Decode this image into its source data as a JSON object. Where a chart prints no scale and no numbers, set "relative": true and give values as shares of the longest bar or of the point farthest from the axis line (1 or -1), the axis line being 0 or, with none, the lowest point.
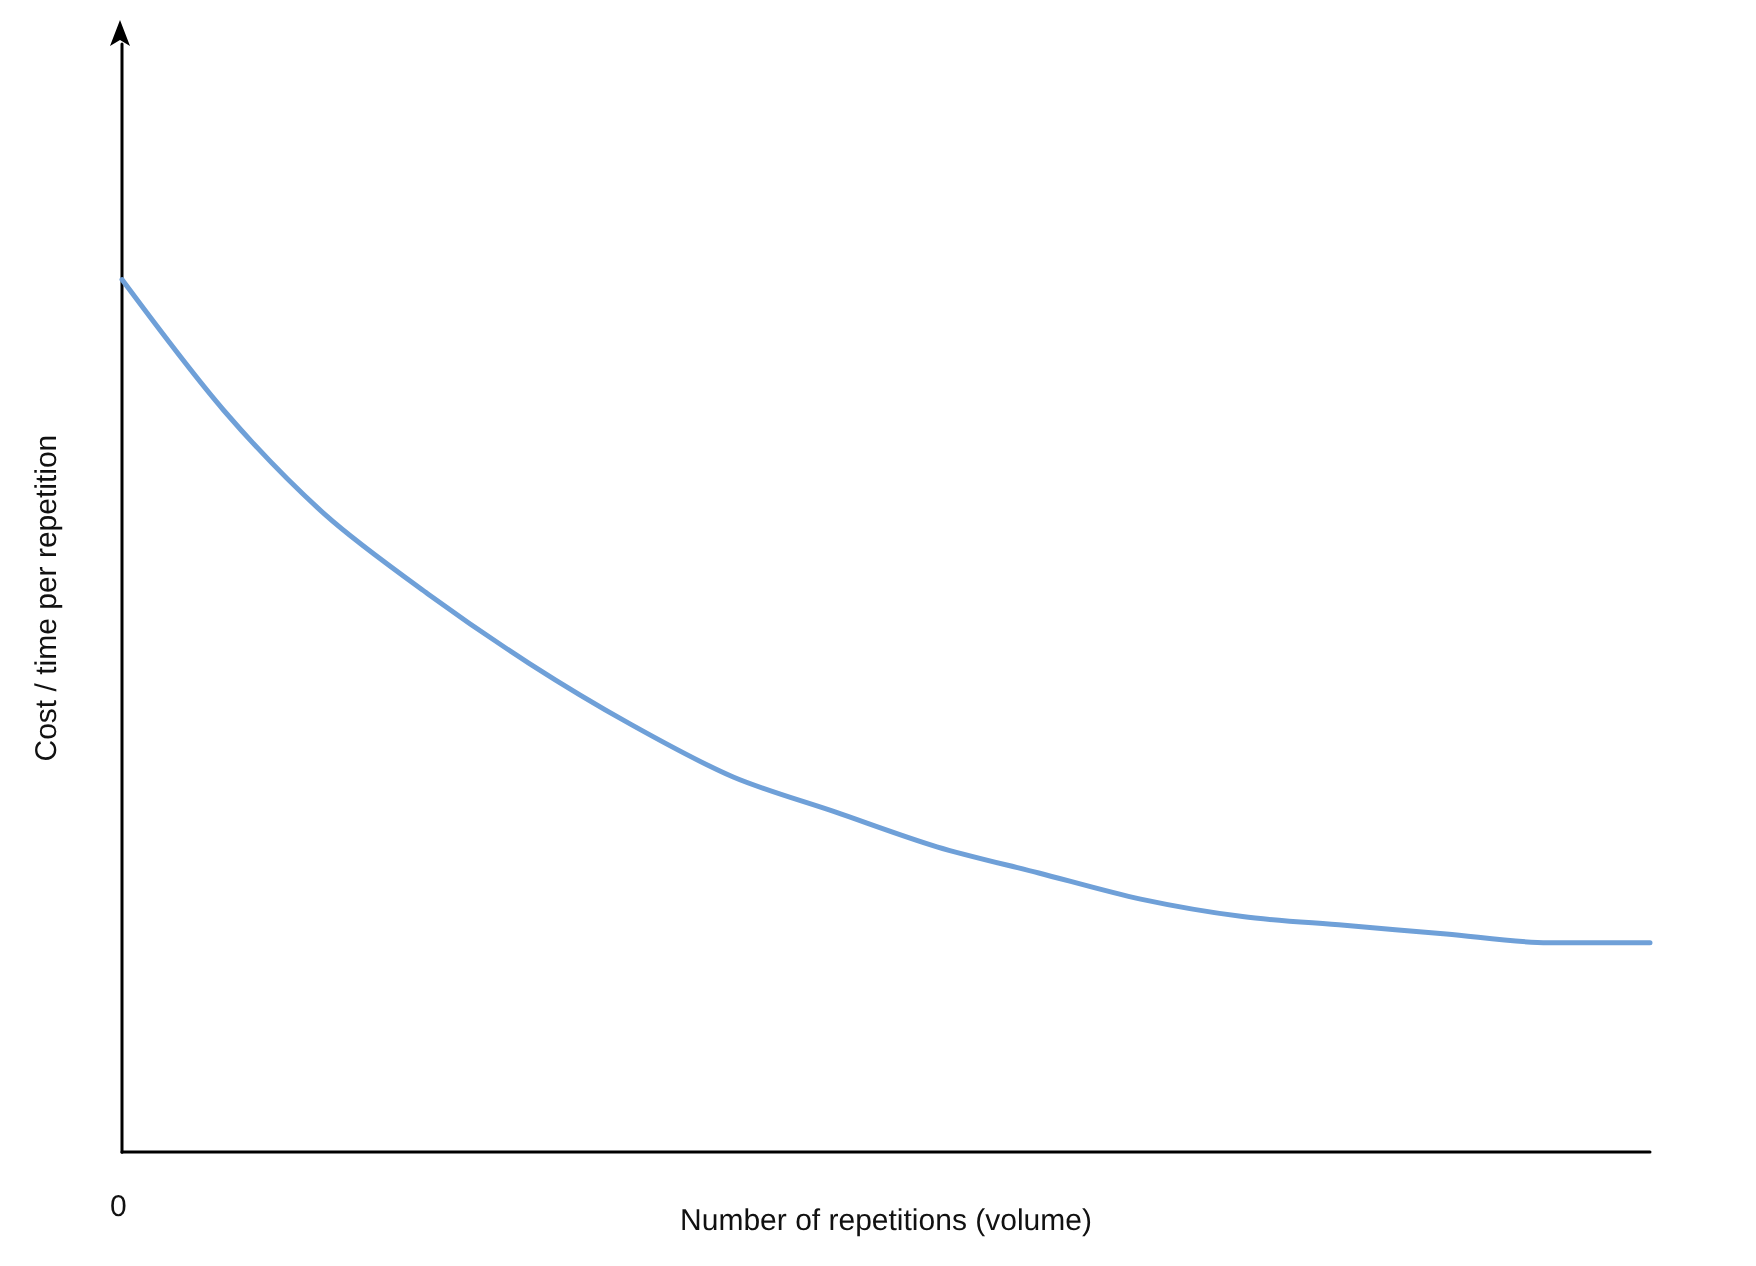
{
  "chart_data": {
    "type": "line",
    "relative": true,
    "xlabel": "Number of repetitions (volume)",
    "ylabel": "Cost / time per repetition",
    "annotations": [
      "0"
    ],
    "categories": [
      null,
      null,
      null,
      null,
      null,
      null,
      null,
      null,
      null,
      null,
      null,
      null,
      null,
      null,
      null,
      null
    ],
    "series": [
      {
        "color": "#6fa0d8",
        "values": [
          1,
          0.85,
          0.73,
          0.64,
          0.56,
          0.49,
          0.43,
          0.39,
          0.35,
          0.32,
          0.29,
          0.27,
          0.26,
          0.25,
          0.24,
          0.24
        ]
      }
    ],
    "tick_labels": "x",
    "grid": false,
    "marker": "none",
    "line_style": "solid"
  }
}
